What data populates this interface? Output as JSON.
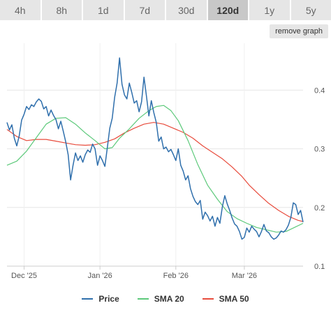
{
  "tabs": [
    {
      "label": "4h",
      "active": false
    },
    {
      "label": "8h",
      "active": false
    },
    {
      "label": "1d",
      "active": false
    },
    {
      "label": "7d",
      "active": false
    },
    {
      "label": "30d",
      "active": false
    },
    {
      "label": "120d",
      "active": true
    },
    {
      "label": "1y",
      "active": false
    },
    {
      "label": "5y",
      "active": false
    }
  ],
  "remove_graph_label": "remove graph",
  "chart_data": {
    "type": "line",
    "title": "",
    "xlabel": "",
    "ylabel": "",
    "grid": true,
    "ylim": [
      0.1,
      0.48
    ],
    "xlim": [
      "2025-11-24",
      "2026-03-25"
    ],
    "x_ticks": [
      {
        "label": "Dec '25",
        "date": "2025-12-01"
      },
      {
        "label": "Jan '26",
        "date": "2026-01-01"
      },
      {
        "label": "Feb '26",
        "date": "2026-02-01"
      },
      {
        "label": "Mar '26",
        "date": "2026-03-01"
      }
    ],
    "y_ticks": [
      0.1,
      0.2,
      0.3,
      0.4
    ],
    "y_tick_labels": [
      "0.1",
      "0.2",
      "0.3",
      "0.4"
    ],
    "legend_position": "bottom",
    "series": [
      {
        "name": "Price",
        "color": "#2f6fac",
        "points": [
          [
            "2025-11-24",
            0.345
          ],
          [
            "2025-11-25",
            0.332
          ],
          [
            "2025-11-26",
            0.341
          ],
          [
            "2025-11-27",
            0.318
          ],
          [
            "2025-11-28",
            0.305
          ],
          [
            "2025-11-29",
            0.322
          ],
          [
            "2025-11-30",
            0.349
          ],
          [
            "2025-12-01",
            0.359
          ],
          [
            "2025-12-02",
            0.372
          ],
          [
            "2025-12-03",
            0.367
          ],
          [
            "2025-12-04",
            0.375
          ],
          [
            "2025-12-05",
            0.372
          ],
          [
            "2025-12-06",
            0.38
          ],
          [
            "2025-12-07",
            0.385
          ],
          [
            "2025-12-08",
            0.381
          ],
          [
            "2025-12-09",
            0.368
          ],
          [
            "2025-12-10",
            0.372
          ],
          [
            "2025-12-11",
            0.356
          ],
          [
            "2025-12-12",
            0.366
          ],
          [
            "2025-12-13",
            0.357
          ],
          [
            "2025-12-14",
            0.35
          ],
          [
            "2025-12-15",
            0.334
          ],
          [
            "2025-12-16",
            0.347
          ],
          [
            "2025-12-17",
            0.33
          ],
          [
            "2025-12-18",
            0.312
          ],
          [
            "2025-12-19",
            0.29
          ],
          [
            "2025-12-20",
            0.247
          ],
          [
            "2025-12-21",
            0.272
          ],
          [
            "2025-12-22",
            0.293
          ],
          [
            "2025-12-23",
            0.28
          ],
          [
            "2025-12-24",
            0.288
          ],
          [
            "2025-12-25",
            0.277
          ],
          [
            "2025-12-26",
            0.29
          ],
          [
            "2025-12-27",
            0.298
          ],
          [
            "2025-12-28",
            0.294
          ],
          [
            "2025-12-29",
            0.308
          ],
          [
            "2025-12-30",
            0.3
          ],
          [
            "2025-12-31",
            0.272
          ],
          [
            "2026-01-01",
            0.288
          ],
          [
            "2026-01-02",
            0.28
          ],
          [
            "2026-01-03",
            0.27
          ],
          [
            "2026-01-04",
            0.302
          ],
          [
            "2026-01-05",
            0.335
          ],
          [
            "2026-01-06",
            0.352
          ],
          [
            "2026-01-07",
            0.388
          ],
          [
            "2026-01-08",
            0.412
          ],
          [
            "2026-01-09",
            0.455
          ],
          [
            "2026-01-10",
            0.41
          ],
          [
            "2026-01-11",
            0.392
          ],
          [
            "2026-01-12",
            0.385
          ],
          [
            "2026-01-13",
            0.412
          ],
          [
            "2026-01-14",
            0.396
          ],
          [
            "2026-01-15",
            0.378
          ],
          [
            "2026-01-16",
            0.382
          ],
          [
            "2026-01-17",
            0.363
          ],
          [
            "2026-01-18",
            0.38
          ],
          [
            "2026-01-19",
            0.422
          ],
          [
            "2026-01-20",
            0.39
          ],
          [
            "2026-01-21",
            0.356
          ],
          [
            "2026-01-22",
            0.382
          ],
          [
            "2026-01-23",
            0.362
          ],
          [
            "2026-01-24",
            0.345
          ],
          [
            "2026-01-25",
            0.313
          ],
          [
            "2026-01-26",
            0.32
          ],
          [
            "2026-01-27",
            0.3
          ],
          [
            "2026-01-28",
            0.303
          ],
          [
            "2026-01-29",
            0.295
          ],
          [
            "2026-01-30",
            0.299
          ],
          [
            "2026-01-31",
            0.29
          ],
          [
            "2026-02-01",
            0.28
          ],
          [
            "2026-02-02",
            0.3
          ],
          [
            "2026-02-03",
            0.272
          ],
          [
            "2026-02-04",
            0.262
          ],
          [
            "2026-02-05",
            0.247
          ],
          [
            "2026-02-06",
            0.254
          ],
          [
            "2026-02-07",
            0.232
          ],
          [
            "2026-02-08",
            0.219
          ],
          [
            "2026-02-09",
            0.21
          ],
          [
            "2026-02-10",
            0.205
          ],
          [
            "2026-02-11",
            0.212
          ],
          [
            "2026-02-12",
            0.18
          ],
          [
            "2026-02-13",
            0.192
          ],
          [
            "2026-02-14",
            0.186
          ],
          [
            "2026-02-15",
            0.177
          ],
          [
            "2026-02-16",
            0.185
          ],
          [
            "2026-02-17",
            0.168
          ],
          [
            "2026-02-18",
            0.183
          ],
          [
            "2026-02-19",
            0.173
          ],
          [
            "2026-02-20",
            0.201
          ],
          [
            "2026-02-21",
            0.22
          ],
          [
            "2026-02-22",
            0.206
          ],
          [
            "2026-02-23",
            0.195
          ],
          [
            "2026-02-24",
            0.182
          ],
          [
            "2026-02-25",
            0.172
          ],
          [
            "2026-02-26",
            0.168
          ],
          [
            "2026-02-27",
            0.159
          ],
          [
            "2026-02-28",
            0.146
          ],
          [
            "2026-03-01",
            0.149
          ],
          [
            "2026-03-02",
            0.165
          ],
          [
            "2026-03-03",
            0.158
          ],
          [
            "2026-03-04",
            0.168
          ],
          [
            "2026-03-05",
            0.163
          ],
          [
            "2026-03-06",
            0.159
          ],
          [
            "2026-03-07",
            0.15
          ],
          [
            "2026-03-08",
            0.159
          ],
          [
            "2026-03-09",
            0.171
          ],
          [
            "2026-03-10",
            0.16
          ],
          [
            "2026-03-11",
            0.157
          ],
          [
            "2026-03-12",
            0.15
          ],
          [
            "2026-03-13",
            0.146
          ],
          [
            "2026-03-14",
            0.148
          ],
          [
            "2026-03-15",
            0.153
          ],
          [
            "2026-03-16",
            0.16
          ],
          [
            "2026-03-17",
            0.158
          ],
          [
            "2026-03-18",
            0.162
          ],
          [
            "2026-03-19",
            0.17
          ],
          [
            "2026-03-20",
            0.183
          ],
          [
            "2026-03-21",
            0.208
          ],
          [
            "2026-03-22",
            0.205
          ],
          [
            "2026-03-23",
            0.188
          ],
          [
            "2026-03-24",
            0.195
          ],
          [
            "2026-03-25",
            0.175
          ]
        ]
      },
      {
        "name": "SMA 20",
        "color": "#5cc97a",
        "points": [
          [
            "2025-11-24",
            0.272
          ],
          [
            "2025-11-28",
            0.279
          ],
          [
            "2025-12-02",
            0.296
          ],
          [
            "2025-12-06",
            0.319
          ],
          [
            "2025-12-10",
            0.342
          ],
          [
            "2025-12-14",
            0.352
          ],
          [
            "2025-12-18",
            0.353
          ],
          [
            "2025-12-22",
            0.342
          ],
          [
            "2025-12-26",
            0.327
          ],
          [
            "2025-12-30",
            0.314
          ],
          [
            "2026-01-03",
            0.3
          ],
          [
            "2026-01-06",
            0.302
          ],
          [
            "2026-01-09",
            0.318
          ],
          [
            "2026-01-13",
            0.334
          ],
          [
            "2026-01-17",
            0.352
          ],
          [
            "2026-01-21",
            0.365
          ],
          [
            "2026-01-24",
            0.372
          ],
          [
            "2026-01-27",
            0.374
          ],
          [
            "2026-01-30",
            0.365
          ],
          [
            "2026-02-02",
            0.348
          ],
          [
            "2026-02-06",
            0.314
          ],
          [
            "2026-02-10",
            0.273
          ],
          [
            "2026-02-14",
            0.238
          ],
          [
            "2026-02-18",
            0.214
          ],
          [
            "2026-02-22",
            0.193
          ],
          [
            "2026-02-26",
            0.181
          ],
          [
            "2026-03-02",
            0.173
          ],
          [
            "2026-03-06",
            0.166
          ],
          [
            "2026-03-10",
            0.162
          ],
          [
            "2026-03-14",
            0.158
          ],
          [
            "2026-03-18",
            0.159
          ],
          [
            "2026-03-22",
            0.167
          ],
          [
            "2026-03-25",
            0.173
          ]
        ]
      },
      {
        "name": "SMA 50",
        "color": "#e84b3c",
        "points": [
          [
            "2025-11-24",
            0.333
          ],
          [
            "2025-11-28",
            0.321
          ],
          [
            "2025-12-02",
            0.314
          ],
          [
            "2025-12-06",
            0.316
          ],
          [
            "2025-12-10",
            0.316
          ],
          [
            "2025-12-14",
            0.313
          ],
          [
            "2025-12-18",
            0.31
          ],
          [
            "2025-12-22",
            0.307
          ],
          [
            "2025-12-26",
            0.306
          ],
          [
            "2025-12-30",
            0.307
          ],
          [
            "2026-01-03",
            0.311
          ],
          [
            "2026-01-07",
            0.317
          ],
          [
            "2026-01-11",
            0.327
          ],
          [
            "2026-01-15",
            0.335
          ],
          [
            "2026-01-19",
            0.342
          ],
          [
            "2026-01-23",
            0.345
          ],
          [
            "2026-01-27",
            0.342
          ],
          [
            "2026-01-31",
            0.335
          ],
          [
            "2026-02-04",
            0.328
          ],
          [
            "2026-02-08",
            0.318
          ],
          [
            "2026-02-12",
            0.305
          ],
          [
            "2026-02-16",
            0.294
          ],
          [
            "2026-02-20",
            0.283
          ],
          [
            "2026-02-24",
            0.269
          ],
          [
            "2026-02-28",
            0.253
          ],
          [
            "2026-03-03",
            0.238
          ],
          [
            "2026-03-07",
            0.222
          ],
          [
            "2026-03-11",
            0.207
          ],
          [
            "2026-03-15",
            0.195
          ],
          [
            "2026-03-19",
            0.185
          ],
          [
            "2026-03-23",
            0.178
          ],
          [
            "2026-03-25",
            0.176
          ]
        ]
      }
    ]
  }
}
